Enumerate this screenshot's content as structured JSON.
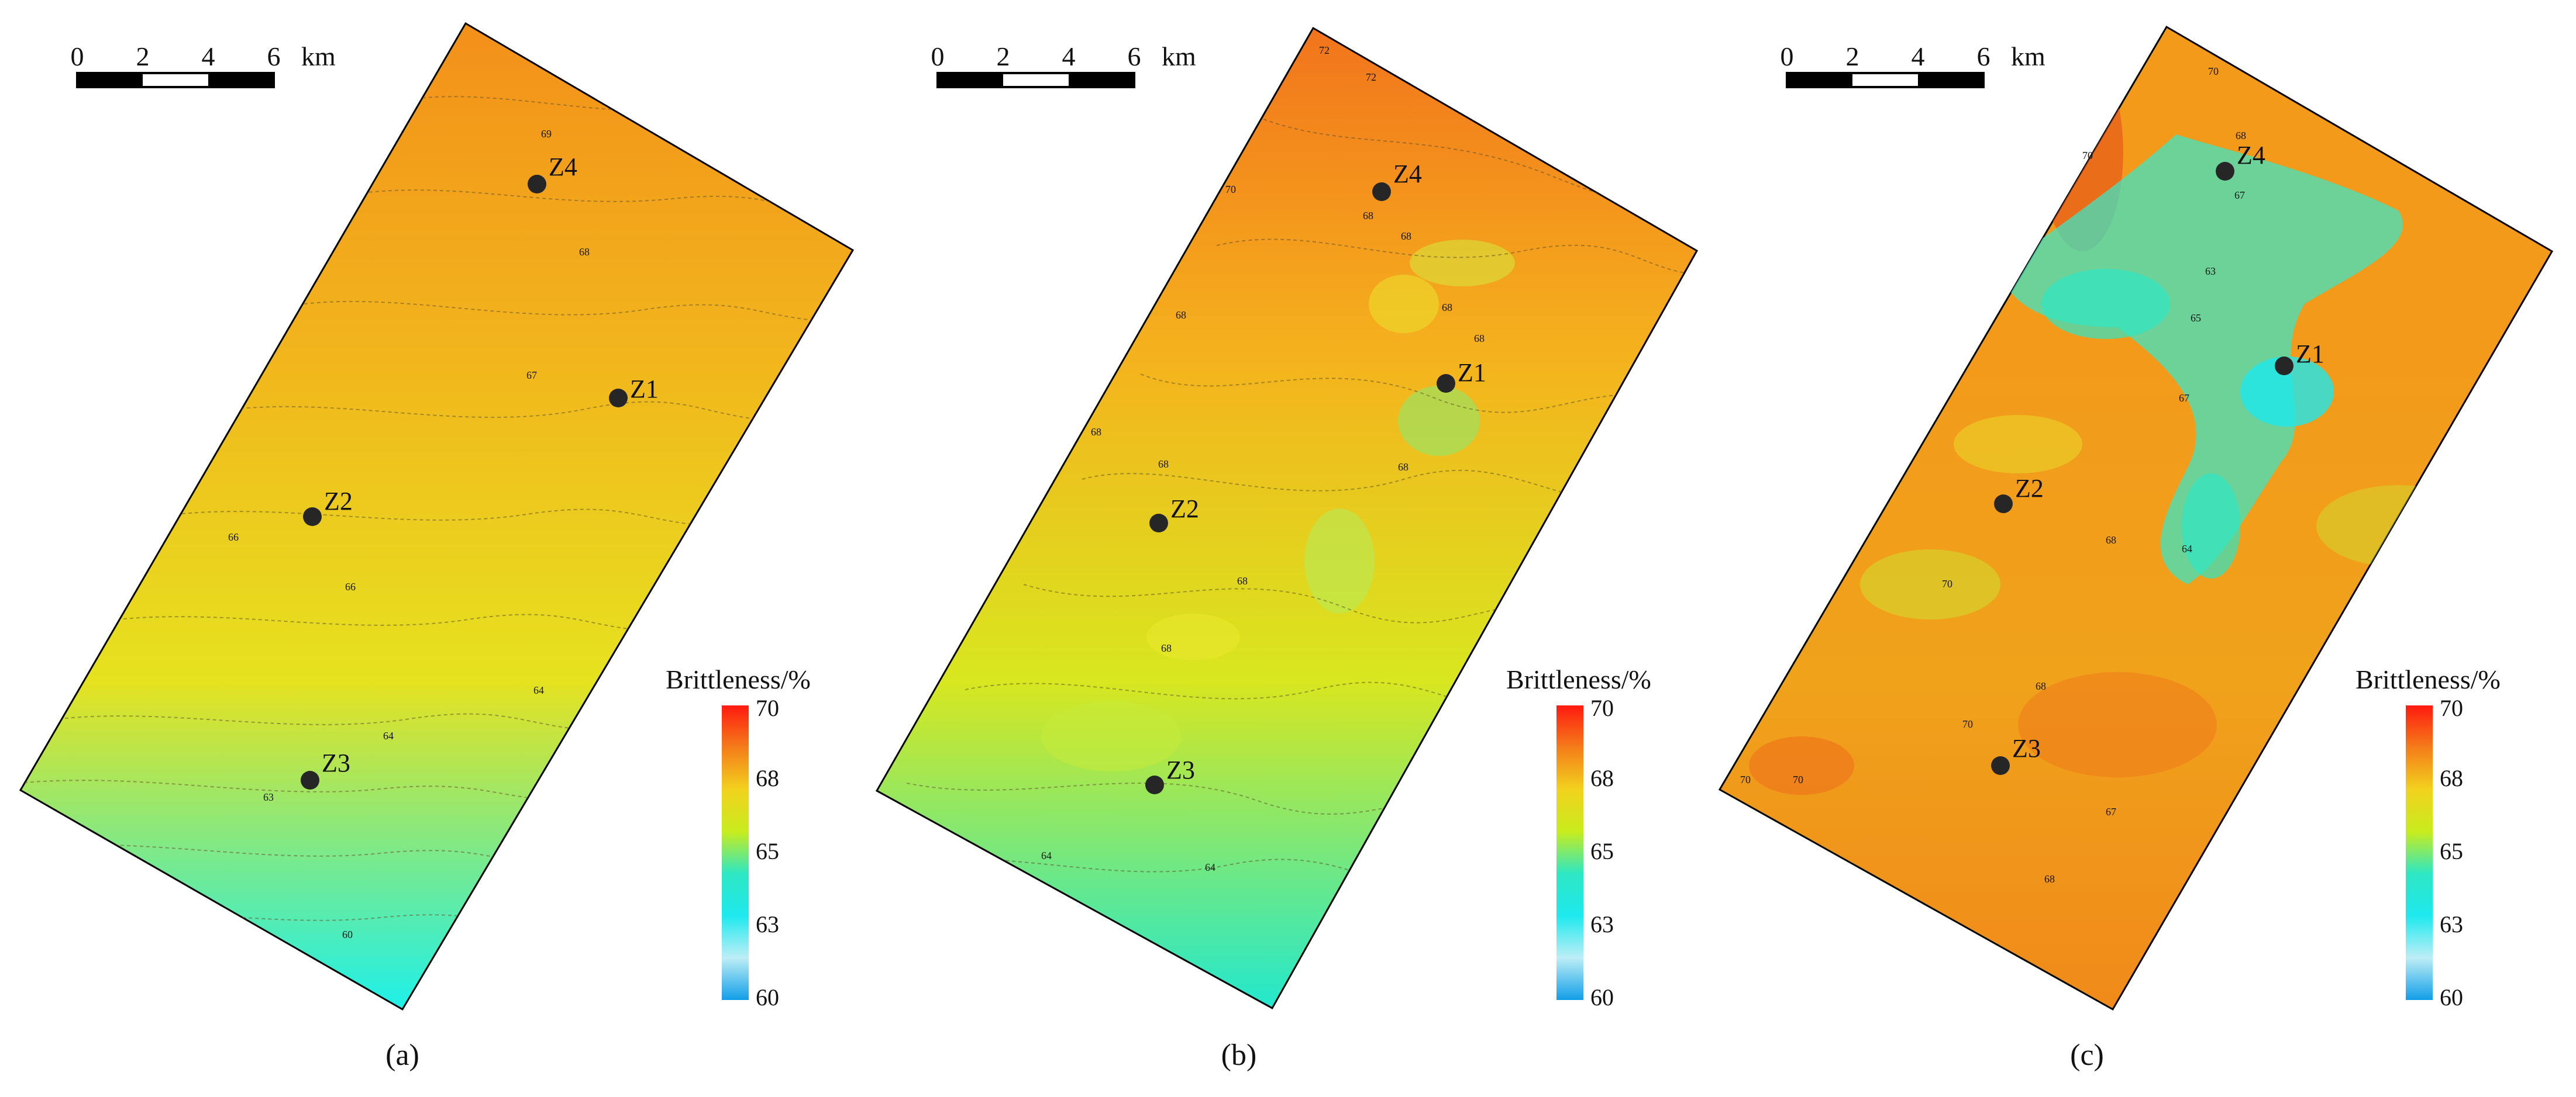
{
  "scalebar": {
    "ticks": [
      "0",
      "2",
      "4",
      "6"
    ],
    "unit": "km"
  },
  "legend": {
    "title": "Brittleness/%",
    "ticks": [
      "70",
      "68",
      "65",
      "63",
      "60"
    ],
    "colors": [
      "#ff1a0f",
      "#f47d1a",
      "#f2d21e",
      "#c8ec1e",
      "#2ee7c4",
      "#1ee9ee",
      "#bdeef6",
      "#129ee8"
    ]
  },
  "panels": [
    {
      "label": "(a)",
      "wells": [
        "Z4",
        "Z1",
        "Z2",
        "Z3"
      ],
      "contour_labels": [
        "69",
        "68",
        "67",
        "66",
        "66",
        "64",
        "64",
        "63",
        "60"
      ],
      "colors": {
        "top": "#f3901a",
        "mid": "#f2b51c",
        "low": "#e6e21f",
        "bottom": "#1ef0ea"
      }
    },
    {
      "label": "(b)",
      "wells": [
        "Z4",
        "Z1",
        "Z2",
        "Z3"
      ],
      "contour_labels": [
        "72",
        "72",
        "70",
        "68",
        "68",
        "68",
        "68",
        "68",
        "68",
        "68",
        "68",
        "68",
        "68",
        "64",
        "64"
      ],
      "colors": {
        "top": "#f2741c",
        "mid": "#f5b21d",
        "low": "#d8e71f",
        "bottom": "#22e8cf"
      }
    },
    {
      "label": "(c)",
      "wells": [
        "Z4",
        "Z1",
        "Z2",
        "Z3"
      ],
      "contour_labels": [
        "70",
        "70",
        "68",
        "67",
        "63",
        "65",
        "67",
        "68",
        "64",
        "70",
        "68",
        "70",
        "70",
        "70",
        "68",
        "67"
      ],
      "colors": {
        "top": "#f39a1b",
        "mid": "#f39a1b",
        "low": "#f0a21b",
        "bottom": "#f08a1a"
      }
    }
  ]
}
